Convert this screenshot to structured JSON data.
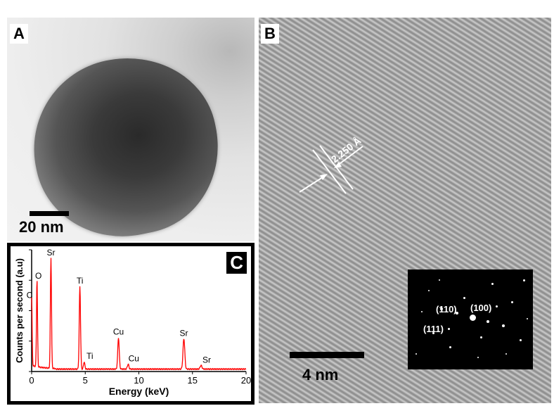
{
  "panels": {
    "a": {
      "label": "A",
      "scale_bar": "20 nm"
    },
    "b": {
      "label": "B",
      "scale_bar": "4 nm",
      "d_spacing": "2.250 Å",
      "inset_indices": [
        "(110)",
        "(100)",
        "(111)"
      ]
    },
    "c": {
      "label": "C"
    }
  },
  "chart_data": {
    "type": "line",
    "xlabel": "Energy (keV)",
    "ylabel": "Counts per second (a.u)",
    "xlim": [
      0,
      20
    ],
    "ylim": [
      0,
      100
    ],
    "xticks": [
      0,
      5,
      10,
      15,
      20
    ],
    "line_color": "#ff0000",
    "grid": false,
    "baseline": 2,
    "peaks": [
      {
        "element": "C",
        "energy": 0.0,
        "height": 58
      },
      {
        "element": "O",
        "energy": 0.5,
        "height": 74
      },
      {
        "element": "Sr",
        "energy": 1.8,
        "height": 93
      },
      {
        "element": "Ti",
        "energy": 4.5,
        "height": 70
      },
      {
        "element": "Ti",
        "energy": 4.9,
        "height": 8
      },
      {
        "element": "Cu",
        "energy": 8.1,
        "height": 28
      },
      {
        "element": "Cu",
        "energy": 9.0,
        "height": 6
      },
      {
        "element": "Sr",
        "energy": 14.2,
        "height": 27
      },
      {
        "element": "Sr",
        "energy": 15.8,
        "height": 5
      }
    ]
  }
}
